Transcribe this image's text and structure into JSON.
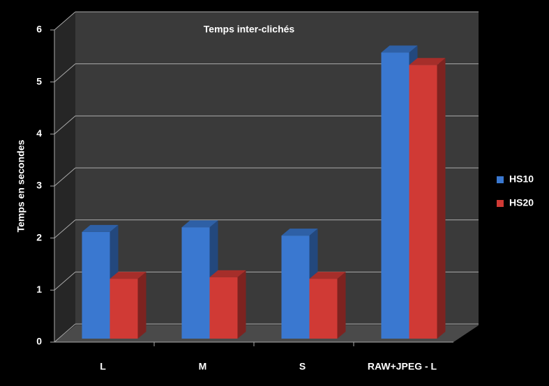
{
  "chart_data": {
    "type": "bar",
    "title": "Temps inter-clichés",
    "y_label": "Temps en secondes",
    "categories": [
      "L",
      "M",
      "S",
      "RAW+JPEG - L"
    ],
    "series": [
      {
        "name": "HS10",
        "color": "#3a78d0",
        "values": [
          2.05,
          2.14,
          1.98,
          5.5
        ]
      },
      {
        "name": "HS20",
        "color": "#d03a35",
        "values": [
          1.15,
          1.18,
          1.15,
          5.26
        ]
      }
    ],
    "ylim": [
      0,
      6
    ],
    "yticks": [
      0,
      1,
      2,
      3,
      4,
      5,
      6
    ],
    "grid": true,
    "legend": "right"
  }
}
